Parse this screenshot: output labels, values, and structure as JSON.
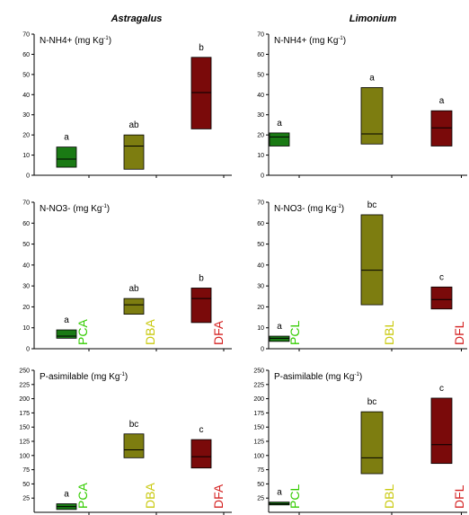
{
  "colors": {
    "green": "#1a7a14",
    "olive": "#7d7d10",
    "darkred": "#7a0a0a",
    "label_green": "#33cc00",
    "label_olive": "#c9c90e",
    "label_red": "#d42020"
  },
  "column_titles": [
    "Astragalus",
    "Limonium"
  ],
  "chart_data": [
    {
      "type": "box",
      "title": "N-NH4+ (mg Kg-1)",
      "title_main": "N-NH4+ (mg Kg",
      "title_sup": "-1",
      "title_end": ")",
      "column_title": "Astragalus",
      "ylim": [
        0,
        70
      ],
      "yticks": [
        "0",
        "10",
        "20",
        "30",
        "40",
        "50",
        "60",
        "70"
      ],
      "show_category_labels": false,
      "categories": [
        "PCA",
        "DBA",
        "DFA"
      ],
      "boxes": [
        {
          "name": "PCA",
          "low": 4,
          "median": 8,
          "high": 14,
          "letter": "a",
          "color": "green"
        },
        {
          "name": "DBA",
          "low": 3,
          "median": 14.5,
          "high": 20,
          "letter": "ab",
          "color": "olive"
        },
        {
          "name": "DFA",
          "low": 23,
          "median": 41,
          "high": 58.5,
          "letter": "b",
          "color": "darkred"
        }
      ]
    },
    {
      "type": "box",
      "title": "N-NH4+ (mg Kg-1)",
      "title_main": "N-NH4+ (mg Kg",
      "title_sup": "-1",
      "title_end": ")",
      "column_title": "Limonium",
      "ylim": [
        0,
        70
      ],
      "yticks": [
        "0",
        "10",
        "20",
        "30",
        "40",
        "50",
        "60",
        "70"
      ],
      "show_category_labels": false,
      "categories": [
        "PCL",
        "DBL",
        "DFL"
      ],
      "boxes": [
        {
          "name": "PCL",
          "low": 14.5,
          "median": 19,
          "high": 21,
          "letter": "a",
          "color": "green"
        },
        {
          "name": "DBL",
          "low": 15.5,
          "median": 20.5,
          "high": 43.5,
          "letter": "a",
          "color": "olive"
        },
        {
          "name": "DFL",
          "low": 14.5,
          "median": 23.5,
          "high": 32,
          "letter": "a",
          "color": "darkred"
        }
      ]
    },
    {
      "type": "box",
      "title": "N-NO3- (mg Kg-1)",
      "title_main": "N-NO3- (mg Kg",
      "title_sup": "-1",
      "title_end": ")",
      "column_title": "Astragalus",
      "ylim": [
        0,
        70
      ],
      "yticks": [
        "0",
        "10",
        "20",
        "30",
        "40",
        "50",
        "60",
        "70"
      ],
      "show_category_labels": true,
      "categories": [
        "PCA",
        "DBA",
        "DFA"
      ],
      "boxes": [
        {
          "name": "PCA",
          "low": 5,
          "median": 6,
          "high": 9,
          "letter": "a",
          "color": "green"
        },
        {
          "name": "DBA",
          "low": 16.5,
          "median": 21,
          "high": 24,
          "letter": "ab",
          "color": "olive"
        },
        {
          "name": "DFA",
          "low": 12.5,
          "median": 24,
          "high": 29,
          "letter": "b",
          "color": "darkred"
        }
      ]
    },
    {
      "type": "box",
      "title": "N-NO3- (mg Kg-1)",
      "title_main": "N-NO3- (mg Kg",
      "title_sup": "-1",
      "title_end": ")",
      "column_title": "Limonium",
      "ylim": [
        0,
        70
      ],
      "yticks": [
        "0",
        "10",
        "20",
        "30",
        "40",
        "50",
        "60",
        "70"
      ],
      "show_category_labels": true,
      "categories": [
        "PCL",
        "DBL",
        "DFL"
      ],
      "boxes": [
        {
          "name": "PCL",
          "low": 3.5,
          "median": 5,
          "high": 6,
          "letter": "a",
          "color": "green"
        },
        {
          "name": "DBL",
          "low": 21,
          "median": 37.5,
          "high": 64,
          "letter": "bc",
          "color": "olive"
        },
        {
          "name": "DFL",
          "low": 19,
          "median": 23.5,
          "high": 29.5,
          "letter": "c",
          "color": "darkred"
        }
      ]
    },
    {
      "type": "box",
      "title": "P-asimilable (mg Kg-1)",
      "title_main": "P-asimilable (mg Kg",
      "title_sup": "-1",
      "title_end": ")",
      "column_title": "Astragalus",
      "ylim": [
        0,
        250
      ],
      "yticks": [
        "25",
        "50",
        "75",
        "100",
        "125",
        "150",
        "175",
        "200",
        "225",
        "250"
      ],
      "show_category_labels": true,
      "categories": [
        "PCA",
        "DBA",
        "DFA"
      ],
      "boxes": [
        {
          "name": "PCA",
          "low": 5,
          "median": 10,
          "high": 15,
          "letter": "a",
          "color": "green"
        },
        {
          "name": "DBA",
          "low": 96,
          "median": 110,
          "high": 138,
          "letter": "bc",
          "color": "olive"
        },
        {
          "name": "DFA",
          "low": 78,
          "median": 98,
          "high": 128,
          "letter": "c",
          "color": "darkred"
        }
      ]
    },
    {
      "type": "box",
      "title": "P-asimilable (mg Kg-1)",
      "title_main": "P-asimilable (mg Kg",
      "title_sup": "-1",
      "title_end": ")",
      "column_title": "Limonium",
      "ylim": [
        0,
        250
      ],
      "yticks": [
        "25",
        "50",
        "75",
        "100",
        "125",
        "150",
        "175",
        "200",
        "225",
        "250"
      ],
      "show_category_labels": true,
      "categories": [
        "PCL",
        "DBL",
        "DFL"
      ],
      "boxes": [
        {
          "name": "PCL",
          "low": 13,
          "median": 15,
          "high": 18,
          "letter": "a",
          "color": "green"
        },
        {
          "name": "DBL",
          "low": 68,
          "median": 96,
          "high": 177,
          "letter": "bc",
          "color": "olive"
        },
        {
          "name": "DFL",
          "low": 86,
          "median": 119,
          "high": 201,
          "letter": "c",
          "color": "darkred"
        }
      ]
    }
  ]
}
